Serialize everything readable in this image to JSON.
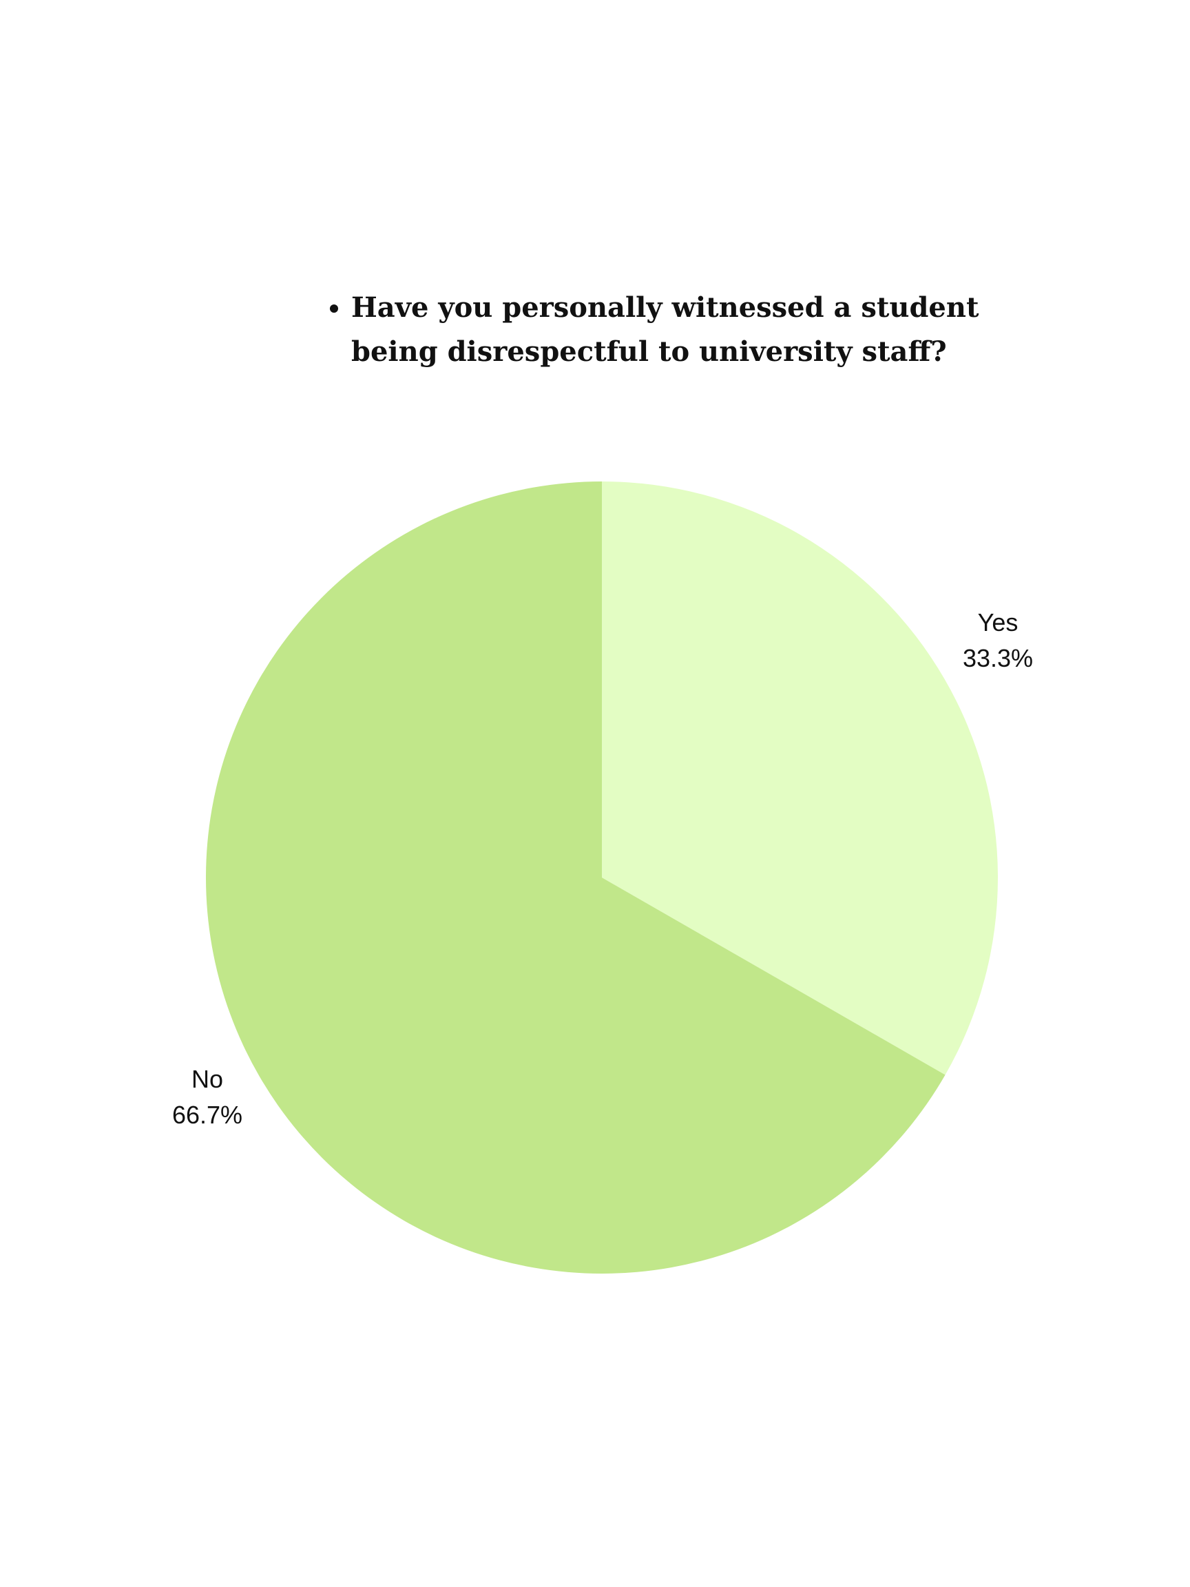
{
  "chart_data": {
    "type": "pie",
    "title": "Have you personally witnessed a student being disrespectful to university staff?",
    "categories": [
      "Yes",
      "No"
    ],
    "values": [
      33.3,
      66.7
    ],
    "labels": [
      "33.3%",
      "66.7%"
    ],
    "colors": [
      "#e3fdc3",
      "#c1e78a"
    ],
    "start_angle": "12 o'clock",
    "direction": "clockwise",
    "legend": "none"
  }
}
